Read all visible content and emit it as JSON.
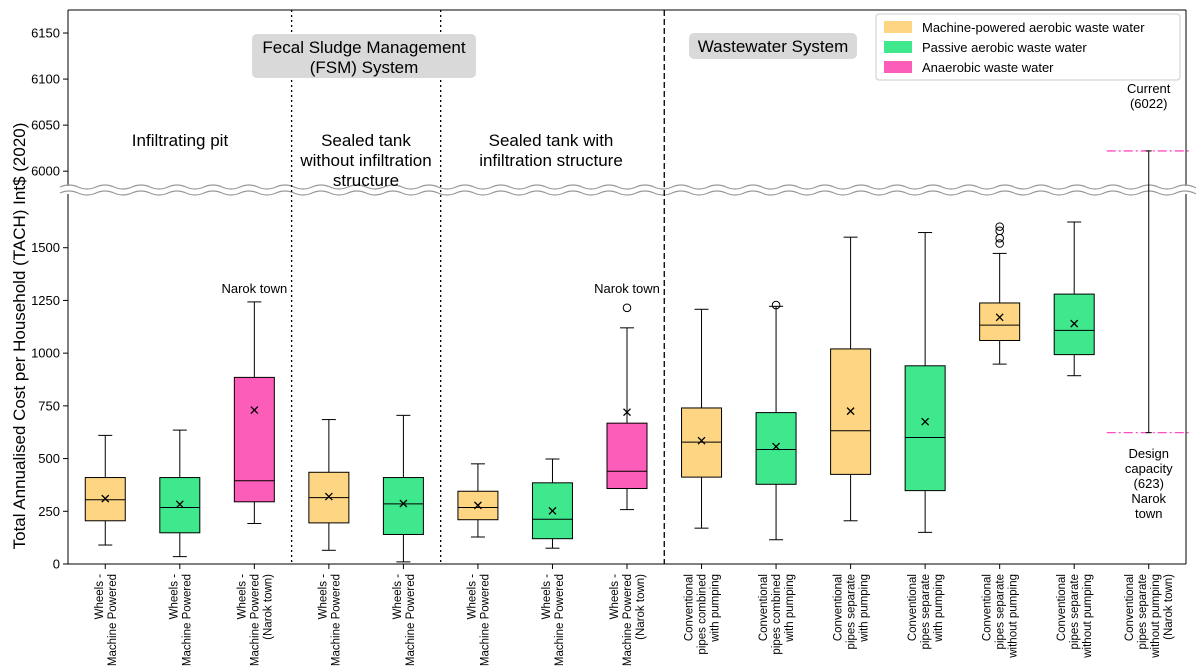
{
  "chart_data": {
    "type": "box",
    "ylabel": "Total Annualised Cost per Household (TACH) Int$ (2020)",
    "y_axis_break": {
      "lower_range": [
        0,
        1750
      ],
      "upper_range": [
        5985,
        6175
      ]
    },
    "yticks_lower": [
      0,
      250,
      500,
      750,
      1000,
      1250,
      1500
    ],
    "yticks_upper": [
      6000,
      6050,
      6100,
      6150
    ],
    "colors": {
      "Machine-powered aerobic waste water": "#FDD583",
      "Passive aerobic waste water": "#3FE88D",
      "Anaerobic waste water": "#FB5DB8"
    },
    "legend": {
      "placement": "top-right",
      "entries": [
        {
          "label": "Machine-powered aerobic waste water",
          "color": "#FDD583"
        },
        {
          "label": "Passive aerobic waste water",
          "color": "#3FE88D"
        },
        {
          "label": "Anaerobic waste water",
          "color": "#FB5DB8"
        }
      ]
    },
    "systems": [
      {
        "label": "Fecal Sludge Management\n(FSM) System",
        "categories": [
          1,
          8
        ]
      },
      {
        "label": "Wastewater System",
        "categories": [
          9,
          15
        ]
      }
    ],
    "regions": [
      {
        "label": "Infiltrating pit",
        "categories": [
          1,
          3
        ]
      },
      {
        "label": "Sealed tank\nwithout infiltration\nstructure",
        "categories": [
          4,
          5
        ]
      },
      {
        "label": "Sealed tank with\ninfiltration structure",
        "categories": [
          6,
          8
        ]
      }
    ],
    "annotations": [
      {
        "text": "Narok town",
        "category": 3,
        "y": 1300
      },
      {
        "text": "Narok town",
        "category": 8,
        "y": 1300
      },
      {
        "text": "Current\n(6022)",
        "category": 15,
        "y": 6022
      },
      {
        "text": "Design\ncapacity\n(623)\nNarok\ntown",
        "category": 15,
        "y": 623
      }
    ],
    "boxes": [
      {
        "category": "Wheels -\nMachine Powered",
        "group": "Machine-powered aerobic waste water",
        "whisker_low": 90,
        "q1": 205,
        "median": 305,
        "q3": 410,
        "whisker_high": 610,
        "mean": 310,
        "outliers": []
      },
      {
        "category": "Wheels -\nMachine Powered",
        "group": "Passive aerobic waste water",
        "whisker_low": 35,
        "q1": 148,
        "median": 268,
        "q3": 410,
        "whisker_high": 635,
        "mean": 283,
        "outliers": []
      },
      {
        "category": "Wheels -\nMachine Powered\n(Narok town)",
        "group": "Anaerobic waste water",
        "whisker_low": 192,
        "q1": 295,
        "median": 395,
        "q3": 885,
        "whisker_high": 1243,
        "mean": 730,
        "outliers": []
      },
      {
        "category": "Wheels -\nMachine Powered",
        "group": "Machine-powered aerobic waste water",
        "whisker_low": 65,
        "q1": 195,
        "median": 315,
        "q3": 435,
        "whisker_high": 685,
        "mean": 320,
        "outliers": []
      },
      {
        "category": "Wheels -\nMachine Powered",
        "group": "Passive aerobic waste water",
        "whisker_low": 10,
        "q1": 140,
        "median": 285,
        "q3": 410,
        "whisker_high": 705,
        "mean": 287,
        "outliers": []
      },
      {
        "category": "Wheels -\nMachine Powered",
        "group": "Machine-powered aerobic waste water",
        "whisker_low": 128,
        "q1": 210,
        "median": 268,
        "q3": 345,
        "whisker_high": 475,
        "mean": 278,
        "outliers": []
      },
      {
        "category": "Wheels -\nMachine Powered",
        "group": "Passive aerobic waste water",
        "whisker_low": 75,
        "q1": 120,
        "median": 212,
        "q3": 385,
        "whisker_high": 498,
        "mean": 252,
        "outliers": []
      },
      {
        "category": "Wheels -\nMachine Powered\n(Narok town)",
        "group": "Anaerobic waste water",
        "whisker_low": 258,
        "q1": 358,
        "median": 440,
        "q3": 668,
        "whisker_high": 1120,
        "mean": 720,
        "outliers": [
          1215
        ]
      },
      {
        "category": "Conventional\npipes combined\nwith pumping",
        "group": "Machine-powered aerobic waste water",
        "whisker_low": 170,
        "q1": 412,
        "median": 578,
        "q3": 740,
        "whisker_high": 1208,
        "mean": 585,
        "outliers": []
      },
      {
        "category": "Conventional\npipes combined\nwith pumping",
        "group": "Passive aerobic waste water",
        "whisker_low": 115,
        "q1": 378,
        "median": 543,
        "q3": 718,
        "whisker_high": 1222,
        "mean": 557,
        "outliers": [
          1228
        ]
      },
      {
        "category": "Conventional\npipes separate\nwith pumping",
        "group": "Machine-powered aerobic waste water",
        "whisker_low": 205,
        "q1": 425,
        "median": 632,
        "q3": 1020,
        "whisker_high": 1550,
        "mean": 725,
        "outliers": []
      },
      {
        "category": "Conventional\npipes separate\nwith pumping",
        "group": "Passive aerobic waste water",
        "whisker_low": 150,
        "q1": 348,
        "median": 600,
        "q3": 940,
        "whisker_high": 1572,
        "mean": 675,
        "outliers": []
      },
      {
        "category": "Conventional\npipes separate\nwithout pumping",
        "group": "Machine-powered aerobic waste water",
        "whisker_low": 948,
        "q1": 1060,
        "median": 1133,
        "q3": 1238,
        "whisker_high": 1473,
        "mean": 1170,
        "outliers": [
          1520,
          1545,
          1580,
          1600
        ]
      },
      {
        "category": "Conventional\npipes separate\nwithout pumping",
        "group": "Passive aerobic waste water",
        "whisker_low": 893,
        "q1": 993,
        "median": 1108,
        "q3": 1280,
        "whisker_high": 1622,
        "mean": 1140,
        "outliers": []
      },
      {
        "category": "Conventional\npipes separate\nwithout pumping\n(Narok town)",
        "group": "",
        "whisker_low": 623,
        "q1": null,
        "median": null,
        "q3": null,
        "whisker_high": 6022,
        "mean": null,
        "outliers": []
      }
    ]
  }
}
